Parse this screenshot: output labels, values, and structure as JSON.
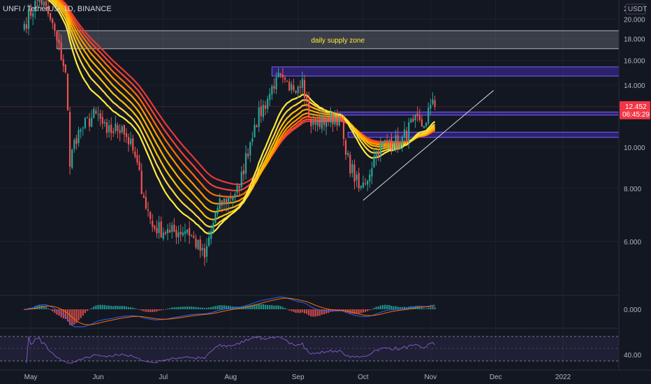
{
  "header": {
    "symbol_label": "UNFI / TetherUS, 1D, BINANCE"
  },
  "currency_badge": "USDT",
  "colors": {
    "background": "#131722",
    "up": "#26a69a",
    "down": "#ef5350",
    "supply_zone": "#787b86",
    "zone_purple": "#3f2ba8",
    "ribbon_fast": "#ffeb3b",
    "ribbon_slow": "#f23645",
    "trendline": "#d1d4dc",
    "price_tag": "#f23645",
    "rsi": "#7e57c2",
    "macd": "#2962ff",
    "signal": "#ff6d00"
  },
  "chart_data": {
    "type": "candlestick",
    "title": "UNFI / TetherUS, 1D, BINANCE",
    "y_axis": {
      "ticks": [
        "6.000",
        "8.000",
        "10.000",
        "12.000",
        "14.000",
        "16.000",
        "18.000",
        "20.000",
        "2"
      ],
      "range": [
        4.5,
        22.2
      ]
    },
    "x_axis": {
      "ticks": [
        "May",
        "Jun",
        "Jul",
        "Aug",
        "Sep",
        "Oct",
        "Nov",
        "Dec",
        "2022"
      ]
    },
    "last_price": "12.452",
    "countdown": "06:45:29",
    "anchors": [
      {
        "date": "2021-04-28",
        "close": 19.5
      },
      {
        "date": "2021-05-05",
        "close": 22.5
      },
      {
        "date": "2021-05-10",
        "close": 20.0
      },
      {
        "date": "2021-05-13",
        "close": 17.8
      },
      {
        "date": "2021-05-17",
        "close": 15.0
      },
      {
        "date": "2021-05-19",
        "close": 9.0
      },
      {
        "date": "2021-05-21",
        "close": 10.4
      },
      {
        "date": "2021-05-24",
        "close": 11.0
      },
      {
        "date": "2021-05-31",
        "close": 12.0
      },
      {
        "date": "2021-06-05",
        "close": 10.8
      },
      {
        "date": "2021-06-12",
        "close": 11.2
      },
      {
        "date": "2021-06-18",
        "close": 9.5
      },
      {
        "date": "2021-06-22",
        "close": 7.6
      },
      {
        "date": "2021-06-26",
        "close": 6.5
      },
      {
        "date": "2021-07-04",
        "close": 6.3
      },
      {
        "date": "2021-07-12",
        "close": 6.4
      },
      {
        "date": "2021-07-20",
        "close": 5.5
      },
      {
        "date": "2021-07-26",
        "close": 7.2
      },
      {
        "date": "2021-08-05",
        "close": 8.0
      },
      {
        "date": "2021-08-12",
        "close": 11.3
      },
      {
        "date": "2021-08-18",
        "close": 13.0
      },
      {
        "date": "2021-08-22",
        "close": 14.6
      },
      {
        "date": "2021-08-28",
        "close": 13.6
      },
      {
        "date": "2021-09-03",
        "close": 14.5
      },
      {
        "date": "2021-09-07",
        "close": 11.2
      },
      {
        "date": "2021-09-14",
        "close": 11.6
      },
      {
        "date": "2021-09-20",
        "close": 11.8
      },
      {
        "date": "2021-09-23",
        "close": 9.6
      },
      {
        "date": "2021-09-29",
        "close": 8.0
      },
      {
        "date": "2021-10-02",
        "close": 8.2
      },
      {
        "date": "2021-10-07",
        "close": 9.8
      },
      {
        "date": "2021-10-13",
        "close": 10.4
      },
      {
        "date": "2021-10-18",
        "close": 10.2
      },
      {
        "date": "2021-10-24",
        "close": 11.5
      },
      {
        "date": "2021-10-29",
        "close": 11.2
      },
      {
        "date": "2021-11-01",
        "close": 12.6
      },
      {
        "date": "2021-11-03",
        "close": 12.45
      }
    ],
    "ema_ribbon": {
      "periods": [
        20,
        25,
        30,
        35,
        40,
        45,
        50,
        55
      ],
      "colors": [
        "#ffeb3b",
        "#ffd740",
        "#ffc107",
        "#ffb300",
        "#ff9800",
        "#ff6d00",
        "#f44336",
        "#e53935"
      ]
    },
    "zones": [
      {
        "label": "daily supply zone",
        "low": 17.05,
        "high": 18.8,
        "start": "2021-05-13"
      },
      {
        "label": "",
        "low": 14.7,
        "high": 15.45,
        "start": "2021-08-20"
      },
      {
        "label": "",
        "low": 11.9,
        "high": 12.1,
        "start": "2021-09-19"
      },
      {
        "label": "",
        "low": 10.55,
        "high": 10.85,
        "start": "2021-09-24"
      }
    ],
    "trendline": {
      "start_date": "2021-10-01",
      "start_value": 7.5,
      "end_date": "2021-11-30",
      "end_value": 13.6
    },
    "macd": {
      "zero_label": "0.000"
    },
    "rsi": {
      "label": "40.00"
    }
  }
}
